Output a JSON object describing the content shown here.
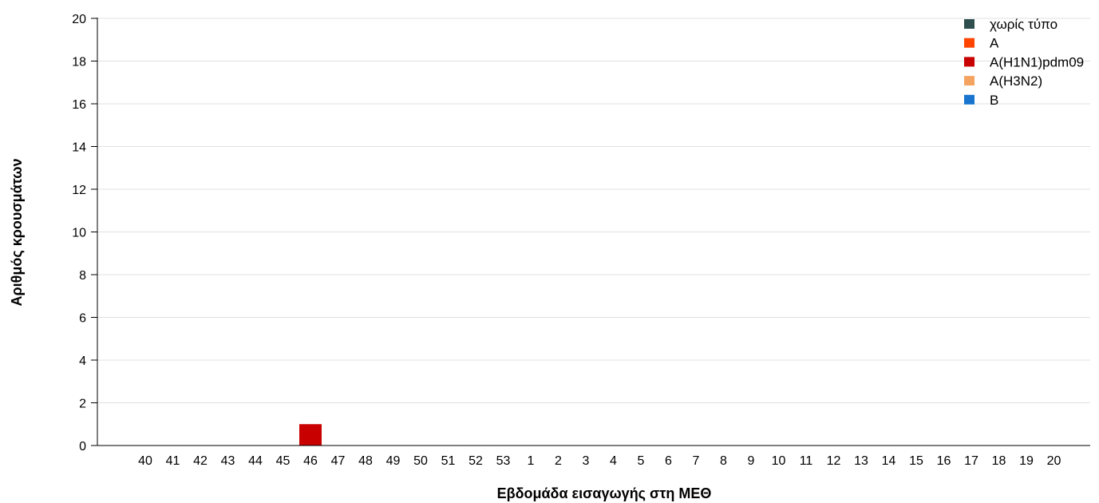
{
  "chart_data": {
    "type": "bar",
    "stacked": true,
    "xlabel": "Εβδομάδα εισαγωγής στη ΜΕΘ",
    "ylabel": "Αριθμός κρουσμάτων",
    "ylim": [
      0,
      20
    ],
    "yticks": [
      0,
      2,
      4,
      6,
      8,
      10,
      12,
      14,
      16,
      18,
      20
    ],
    "grid": "horizontal",
    "legend_position": "top-right",
    "categories": [
      "40",
      "41",
      "42",
      "43",
      "44",
      "45",
      "46",
      "47",
      "48",
      "49",
      "50",
      "51",
      "52",
      "53",
      "1",
      "2",
      "3",
      "4",
      "5",
      "6",
      "7",
      "8",
      "9",
      "10",
      "11",
      "12",
      "13",
      "14",
      "15",
      "16",
      "17",
      "18",
      "19",
      "20"
    ],
    "series": [
      {
        "name": "χωρίς τύπο",
        "color": "#2f4f4f",
        "values": [
          0,
          0,
          0,
          0,
          0,
          0,
          0,
          0,
          0,
          0,
          0,
          0,
          0,
          0,
          0,
          0,
          0,
          0,
          0,
          0,
          0,
          0,
          0,
          0,
          0,
          0,
          0,
          0,
          0,
          0,
          0,
          0,
          0,
          0
        ]
      },
      {
        "name": "A",
        "color": "#ff4500",
        "values": [
          0,
          0,
          0,
          0,
          0,
          0,
          0,
          0,
          0,
          0,
          0,
          0,
          0,
          0,
          0,
          0,
          0,
          0,
          0,
          0,
          0,
          0,
          0,
          0,
          0,
          0,
          0,
          0,
          0,
          0,
          0,
          0,
          0,
          0
        ]
      },
      {
        "name": "A(H1N1)pdm09",
        "color": "#c80000",
        "values": [
          0,
          0,
          0,
          0,
          0,
          0,
          1,
          0,
          0,
          0,
          0,
          0,
          0,
          0,
          0,
          0,
          0,
          0,
          0,
          0,
          0,
          0,
          0,
          0,
          0,
          0,
          0,
          0,
          0,
          0,
          0,
          0,
          0,
          0
        ]
      },
      {
        "name": "A(H3N2)",
        "color": "#f4a460",
        "values": [
          0,
          0,
          0,
          0,
          0,
          0,
          0,
          0,
          0,
          0,
          0,
          0,
          0,
          0,
          0,
          0,
          0,
          0,
          0,
          0,
          0,
          0,
          0,
          0,
          0,
          0,
          0,
          0,
          0,
          0,
          0,
          0,
          0,
          0
        ]
      },
      {
        "name": "B",
        "color": "#1874cd",
        "values": [
          0,
          0,
          0,
          0,
          0,
          0,
          0,
          0,
          0,
          0,
          0,
          0,
          0,
          0,
          0,
          0,
          0,
          0,
          0,
          0,
          0,
          0,
          0,
          0,
          0,
          0,
          0,
          0,
          0,
          0,
          0,
          0,
          0,
          0
        ]
      }
    ]
  }
}
